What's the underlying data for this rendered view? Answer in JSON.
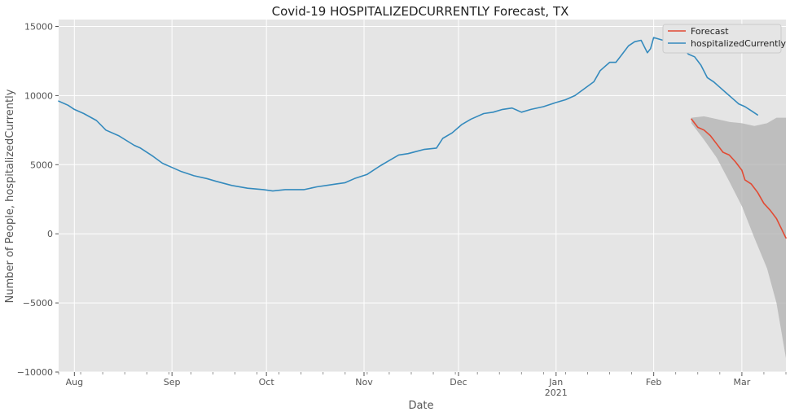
{
  "chart_data": {
    "type": "line",
    "title": "Covid-19 HOSPITALIZEDCURRENTLY Forecast, TX",
    "xlabel": "Date",
    "ylabel": "Number of People, hospitalizedCurrently",
    "x_range": [
      "2020-07-27",
      "2021-03-15"
    ],
    "ylim": [
      -10000,
      15500
    ],
    "y_ticks": [
      -10000,
      -5000,
      0,
      5000,
      10000,
      15000
    ],
    "y_tick_labels": [
      "−10000",
      "−5000",
      "0",
      "5000",
      "10000",
      "15000"
    ],
    "x_ticks": [
      {
        "date": "2020-08-01",
        "label": "Aug"
      },
      {
        "date": "2020-09-01",
        "label": "Sep"
      },
      {
        "date": "2020-10-01",
        "label": "Oct"
      },
      {
        "date": "2020-11-01",
        "label": "Nov"
      },
      {
        "date": "2020-12-01",
        "label": "Dec"
      },
      {
        "date": "2021-01-01",
        "label": "Jan",
        "sublabel": "2021"
      },
      {
        "date": "2021-02-01",
        "label": "Feb"
      },
      {
        "date": "2021-03-01",
        "label": "Mar"
      }
    ],
    "grid": true,
    "legend_position": "top-right",
    "series": [
      {
        "name": "Forecast",
        "color": "#e24a33",
        "points": [
          [
            "2021-02-13",
            8300
          ],
          [
            "2021-02-15",
            7700
          ],
          [
            "2021-02-17",
            7500
          ],
          [
            "2021-02-19",
            7100
          ],
          [
            "2021-02-21",
            6500
          ],
          [
            "2021-02-23",
            5900
          ],
          [
            "2021-02-25",
            5700
          ],
          [
            "2021-02-27",
            5200
          ],
          [
            "2021-02-29",
            4600
          ],
          [
            "2021-03-02",
            3900
          ],
          [
            "2021-03-04",
            3600
          ],
          [
            "2021-03-06",
            3000
          ],
          [
            "2021-03-08",
            2200
          ],
          [
            "2021-03-10",
            1700
          ],
          [
            "2021-03-12",
            1100
          ],
          [
            "2021-03-15",
            -300
          ]
        ]
      },
      {
        "name": "hospitalizedCurrently",
        "color": "#348abd",
        "points": [
          [
            "2020-07-27",
            9600
          ],
          [
            "2020-07-30",
            9300
          ],
          [
            "2020-08-01",
            9000
          ],
          [
            "2020-08-04",
            8700
          ],
          [
            "2020-08-08",
            8200
          ],
          [
            "2020-08-11",
            7500
          ],
          [
            "2020-08-15",
            7100
          ],
          [
            "2020-08-20",
            6400
          ],
          [
            "2020-08-22",
            6200
          ],
          [
            "2020-08-26",
            5600
          ],
          [
            "2020-08-29",
            5100
          ],
          [
            "2020-09-01",
            4800
          ],
          [
            "2020-09-04",
            4500
          ],
          [
            "2020-09-08",
            4200
          ],
          [
            "2020-09-12",
            4000
          ],
          [
            "2020-09-15",
            3800
          ],
          [
            "2020-09-20",
            3500
          ],
          [
            "2020-09-25",
            3300
          ],
          [
            "2020-09-30",
            3200
          ],
          [
            "2020-10-03",
            3100
          ],
          [
            "2020-10-07",
            3200
          ],
          [
            "2020-10-13",
            3200
          ],
          [
            "2020-10-17",
            3400
          ],
          [
            "2020-10-20",
            3500
          ],
          [
            "2020-10-23",
            3600
          ],
          [
            "2020-10-26",
            3700
          ],
          [
            "2020-10-29",
            4000
          ],
          [
            "2020-11-02",
            4300
          ],
          [
            "2020-11-06",
            4900
          ],
          [
            "2020-11-09",
            5300
          ],
          [
            "2020-11-12",
            5700
          ],
          [
            "2020-11-15",
            5800
          ],
          [
            "2020-11-20",
            6100
          ],
          [
            "2020-11-24",
            6200
          ],
          [
            "2020-11-26",
            6900
          ],
          [
            "2020-11-29",
            7300
          ],
          [
            "2020-12-02",
            7900
          ],
          [
            "2020-12-05",
            8300
          ],
          [
            "2020-12-09",
            8700
          ],
          [
            "2020-12-12",
            8800
          ],
          [
            "2020-12-15",
            9000
          ],
          [
            "2020-12-18",
            9100
          ],
          [
            "2020-12-21",
            8800
          ],
          [
            "2020-12-24",
            9000
          ],
          [
            "2020-12-28",
            9200
          ],
          [
            "2021-01-01",
            9500
          ],
          [
            "2021-01-04",
            9700
          ],
          [
            "2021-01-07",
            10000
          ],
          [
            "2021-01-10",
            10500
          ],
          [
            "2021-01-13",
            11000
          ],
          [
            "2021-01-15",
            11800
          ],
          [
            "2021-01-18",
            12400
          ],
          [
            "2021-01-20",
            12400
          ],
          [
            "2021-01-22",
            13000
          ],
          [
            "2021-01-24",
            13600
          ],
          [
            "2021-01-26",
            13900
          ],
          [
            "2021-01-28",
            14000
          ],
          [
            "2021-01-30",
            13100
          ],
          [
            "2021-01-31",
            13400
          ],
          [
            "2021-02-01",
            14200
          ],
          [
            "2021-02-04",
            14000
          ],
          [
            "2021-02-06",
            13800
          ],
          [
            "2021-02-08",
            13600
          ],
          [
            "2021-02-10",
            13500
          ],
          [
            "2021-02-12",
            13000
          ],
          [
            "2021-02-14",
            12800
          ],
          [
            "2021-02-16",
            12200
          ],
          [
            "2021-02-18",
            11300
          ],
          [
            "2021-02-20",
            11000
          ],
          [
            "2021-02-22",
            10600
          ],
          [
            "2021-02-24",
            10200
          ],
          [
            "2021-02-26",
            9800
          ],
          [
            "2021-02-28",
            9400
          ],
          [
            "2021-03-02",
            9200
          ],
          [
            "2021-03-04",
            8900
          ],
          [
            "2021-03-06",
            8600
          ]
        ]
      }
    ],
    "confidence_band": {
      "color": "#b0b0b0",
      "upper": [
        [
          "2021-02-13",
          8400
        ],
        [
          "2021-02-17",
          8500
        ],
        [
          "2021-02-21",
          8300
        ],
        [
          "2021-02-25",
          8100
        ],
        [
          "2021-03-01",
          8000
        ],
        [
          "2021-03-05",
          7800
        ],
        [
          "2021-03-09",
          8000
        ],
        [
          "2021-03-12",
          8400
        ],
        [
          "2021-03-15",
          8400
        ]
      ],
      "lower": [
        [
          "2021-02-13",
          8000
        ],
        [
          "2021-02-17",
          6800
        ],
        [
          "2021-02-21",
          5500
        ],
        [
          "2021-02-25",
          3800
        ],
        [
          "2021-03-01",
          2000
        ],
        [
          "2021-03-05",
          -300
        ],
        [
          "2021-03-09",
          -2500
        ],
        [
          "2021-03-12",
          -5000
        ],
        [
          "2021-03-15",
          -9000
        ]
      ]
    }
  }
}
